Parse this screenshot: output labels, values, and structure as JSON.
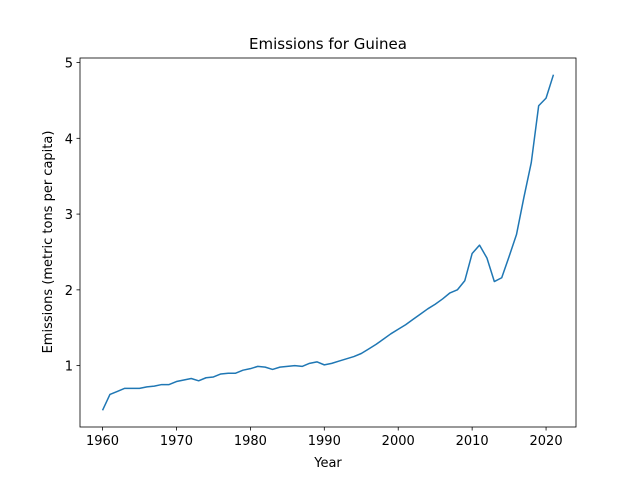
{
  "chart_data": {
    "type": "line",
    "title": "Emissions for Guinea",
    "x_label": "Year",
    "y_label": "Emissions (metric tons per capita)",
    "x": [
      1960,
      1961,
      1962,
      1963,
      1964,
      1965,
      1966,
      1967,
      1968,
      1969,
      1970,
      1971,
      1972,
      1973,
      1974,
      1975,
      1976,
      1977,
      1978,
      1979,
      1980,
      1981,
      1982,
      1983,
      1984,
      1985,
      1986,
      1987,
      1988,
      1989,
      1990,
      1991,
      1992,
      1993,
      1994,
      1995,
      1996,
      1997,
      1998,
      1999,
      2000,
      2001,
      2002,
      2003,
      2004,
      2005,
      2006,
      2007,
      2008,
      2009,
      2010,
      2011,
      2012,
      2013,
      2014,
      2015,
      2016,
      2017,
      2018,
      2019,
      2020,
      2021
    ],
    "series": [
      {
        "color": "#1f77b4",
        "values": [
          0.41,
          0.62,
          0.66,
          0.7,
          0.7,
          0.7,
          0.72,
          0.73,
          0.75,
          0.75,
          0.79,
          0.81,
          0.83,
          0.8,
          0.84,
          0.85,
          0.89,
          0.9,
          0.9,
          0.94,
          0.96,
          0.99,
          0.98,
          0.95,
          0.98,
          0.99,
          1.0,
          0.99,
          1.03,
          1.05,
          1.01,
          1.03,
          1.06,
          1.09,
          1.12,
          1.16,
          1.22,
          1.28,
          1.35,
          1.42,
          1.48,
          1.54,
          1.61,
          1.68,
          1.75,
          1.81,
          1.88,
          1.96,
          2.0,
          2.12,
          2.48,
          2.59,
          2.42,
          2.11,
          2.16,
          2.44,
          2.73,
          3.22,
          3.68,
          4.43,
          4.53,
          4.84
        ]
      }
    ],
    "xlim": [
      1956.95,
      2024.05
    ],
    "ylim": [
      0.19,
      5.06
    ],
    "xticks": [
      1960,
      1970,
      1980,
      1990,
      2000,
      2010,
      2020
    ],
    "yticks": [
      1,
      2,
      3,
      4,
      5
    ]
  }
}
